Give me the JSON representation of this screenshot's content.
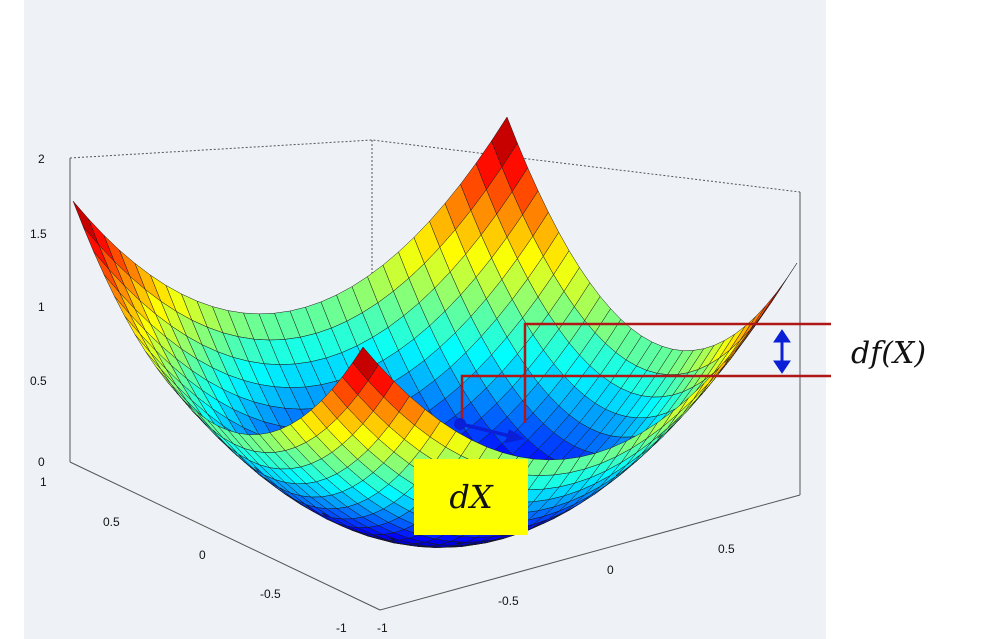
{
  "figure": {
    "z_ticks": [
      "0",
      "0.5",
      "1",
      "1.5",
      "2"
    ],
    "x_ticks": [
      "1",
      "0.5",
      "0",
      "-0.5",
      "-1"
    ],
    "y_ticks": [
      "-1",
      "-0.5",
      "0",
      "0.5"
    ],
    "surface": {
      "function": "z = x^2 + y^2",
      "colormap": "jet",
      "range": [
        -1,
        1
      ]
    }
  },
  "annotations": {
    "dfx_label": "df(X)",
    "dx_label": "dX",
    "colors": {
      "bracket": "#b01616",
      "arrow": "#0a1fd6",
      "dx_box": "#ffff00",
      "plot_bg": "#eef2f7"
    }
  }
}
